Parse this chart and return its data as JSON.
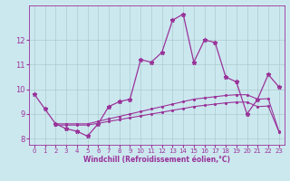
{
  "xlabel": "Windchill (Refroidissement éolien,°C)",
  "background_color": "#cce8ef",
  "grid_color": "#aacccc",
  "line_color": "#993399",
  "xlim": [
    -0.5,
    23.5
  ],
  "ylim": [
    7.75,
    13.4
  ],
  "yticks": [
    8,
    9,
    10,
    11,
    12
  ],
  "xticks": [
    0,
    1,
    2,
    3,
    4,
    5,
    6,
    7,
    8,
    9,
    10,
    11,
    12,
    13,
    14,
    15,
    16,
    17,
    18,
    19,
    20,
    21,
    22,
    23
  ],
  "series1_x": [
    0,
    1,
    2,
    3,
    4,
    5,
    6,
    7,
    8,
    9,
    10,
    11,
    12,
    13,
    14,
    15,
    16,
    17,
    18,
    19,
    20,
    21,
    22,
    23
  ],
  "series1_y": [
    9.8,
    9.2,
    8.6,
    8.4,
    8.3,
    8.1,
    8.6,
    9.3,
    9.5,
    9.6,
    11.2,
    11.1,
    11.5,
    12.8,
    13.05,
    11.1,
    12.0,
    11.9,
    10.5,
    10.3,
    9.0,
    9.6,
    10.6,
    10.1
  ],
  "series2_x": [
    2,
    3,
    4,
    5,
    6,
    7,
    8,
    9,
    10,
    11,
    12,
    13,
    14,
    15,
    16,
    17,
    18,
    19,
    20,
    21,
    22,
    23
  ],
  "series2_y": [
    8.6,
    8.6,
    8.6,
    8.6,
    8.7,
    8.8,
    8.9,
    9.0,
    9.1,
    9.2,
    9.3,
    9.4,
    9.5,
    9.6,
    9.65,
    9.7,
    9.75,
    9.78,
    9.78,
    9.6,
    9.62,
    8.3
  ],
  "series3_x": [
    2,
    3,
    4,
    5,
    6,
    7,
    8,
    9,
    10,
    11,
    12,
    13,
    14,
    15,
    16,
    17,
    18,
    19,
    20,
    21,
    22,
    23
  ],
  "series3_y": [
    8.55,
    8.55,
    8.55,
    8.55,
    8.62,
    8.7,
    8.77,
    8.85,
    8.92,
    9.0,
    9.07,
    9.15,
    9.22,
    9.3,
    9.35,
    9.4,
    9.45,
    9.48,
    9.48,
    9.3,
    9.32,
    8.28
  ]
}
